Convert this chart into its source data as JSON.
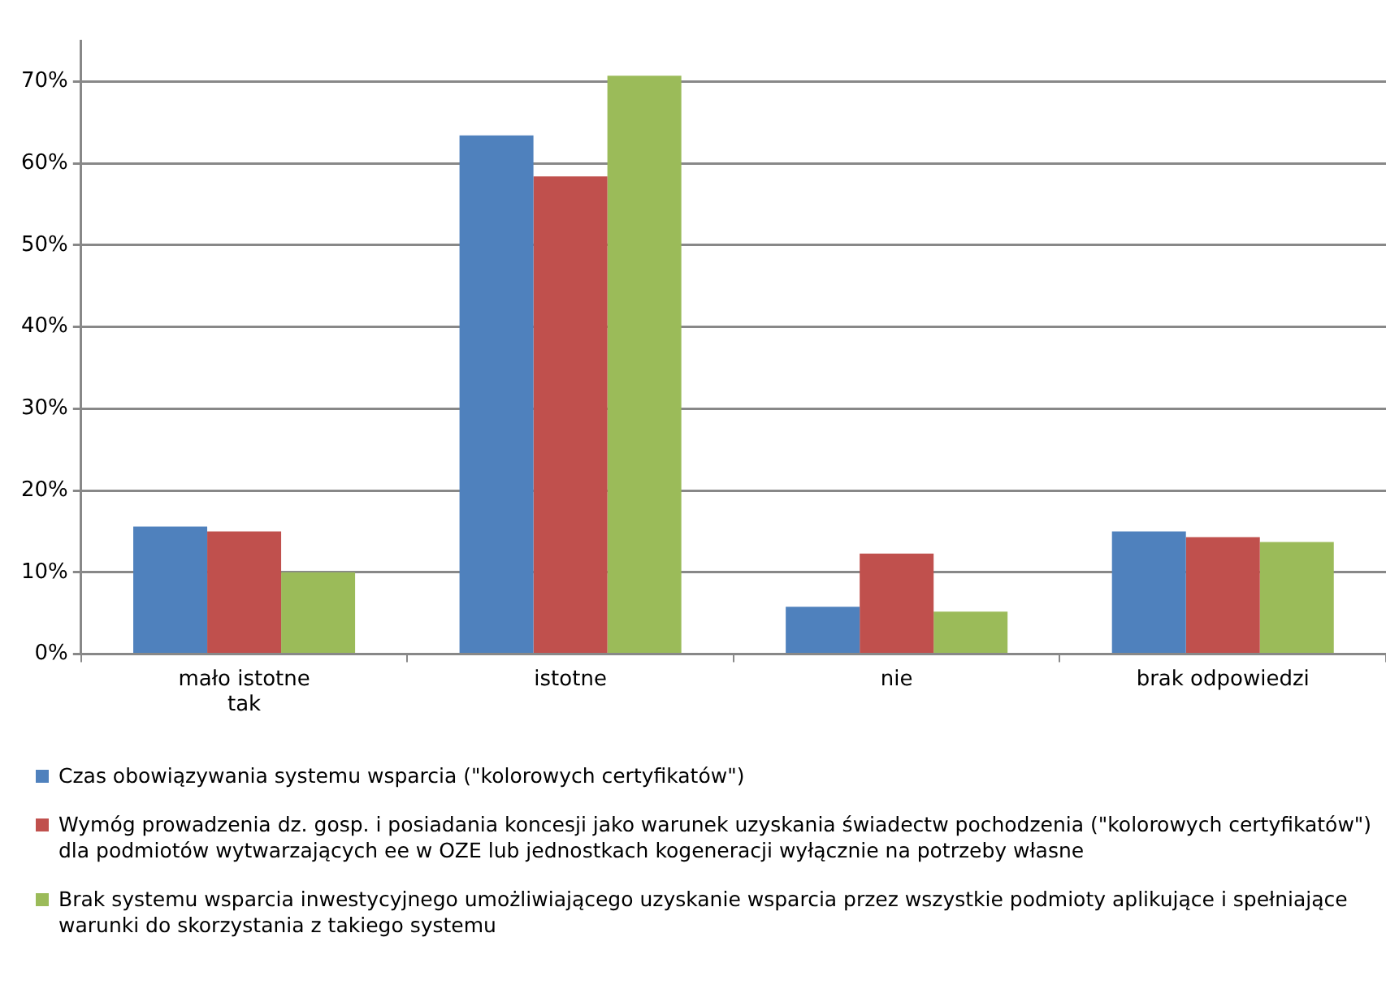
{
  "chart_data": {
    "type": "bar",
    "categories": [
      "mało istotne\ntak",
      "istotne",
      "nie",
      "brak odpowiedzi"
    ],
    "series": [
      {
        "name": "Czas obowiązywania systemu wsparcia (\"kolorowych certyfikatów\")",
        "color": "#4f81bd",
        "values": [
          15.6,
          63.4,
          5.8,
          15.0
        ]
      },
      {
        "name": "Wymóg prowadzenia dz. gosp. i posiadania koncesji jako warunek uzyskania świadectw pochodzenia (\"kolorowych certyfikatów\") dla podmiotów wytwarzających ee w OZE lub jednostkach kogeneracji wyłącznie na potrzeby własne",
        "color": "#c0504d",
        "values": [
          15.0,
          58.4,
          12.3,
          14.3
        ]
      },
      {
        "name": "Brak systemu wsparcia inwestycyjnego umożliwiającego uzyskanie wsparcia przez wszystkie podmioty aplikujące i spełniające warunki do skorzystania z takiego systemu",
        "color": "#9bbb59",
        "values": [
          10.0,
          70.7,
          5.2,
          13.7
        ]
      }
    ],
    "ylim": [
      0,
      75
    ],
    "yticks": [
      {
        "value": 0,
        "label": "0%"
      },
      {
        "value": 10,
        "label": "10%"
      },
      {
        "value": 20,
        "label": "20%"
      },
      {
        "value": 30,
        "label": "30%"
      },
      {
        "value": 40,
        "label": "40%"
      },
      {
        "value": 50,
        "label": "50%"
      },
      {
        "value": 60,
        "label": "60%"
      },
      {
        "value": 70,
        "label": "70%"
      }
    ],
    "grid": "y",
    "legend": "bottom"
  }
}
